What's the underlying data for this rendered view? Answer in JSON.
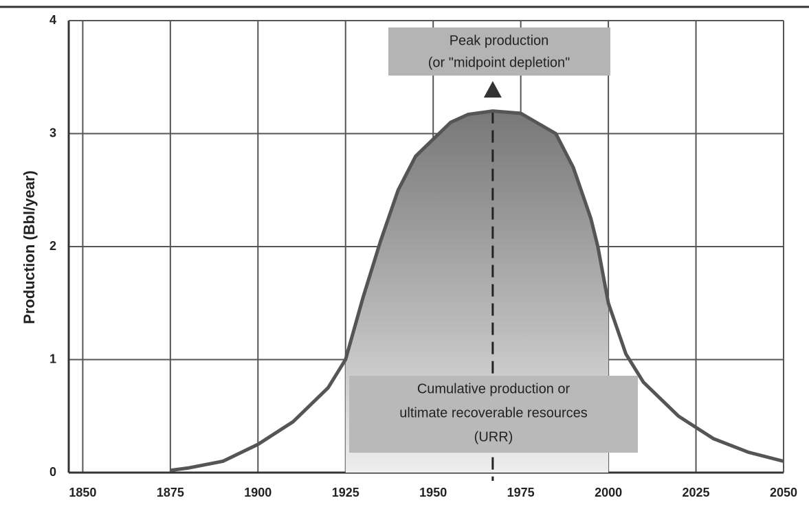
{
  "chart_data": {
    "type": "line",
    "y_label": "Production (Bbl/year)",
    "annotations": [
      "Peak production",
      "(or \"midpoint depletion\"",
      "Cumulative production or",
      "ultimate recoverable resources",
      "(URR)"
    ],
    "x": [
      1875,
      1880,
      1890,
      1900,
      1910,
      1920,
      1925,
      1930,
      1935,
      1940,
      1945,
      1950,
      1955,
      1960,
      1967,
      1975,
      1985,
      1990,
      1995,
      1997,
      2000,
      2005,
      2010,
      2020,
      2025,
      2030,
      2040,
      2050
    ],
    "series": [
      {
        "name": "Production",
        "color": "#555555",
        "values": [
          0.02,
          0.04,
          0.1,
          0.25,
          0.45,
          0.75,
          1.0,
          1.55,
          2.05,
          2.5,
          2.8,
          2.95,
          3.1,
          3.17,
          3.2,
          3.18,
          3.0,
          2.7,
          2.25,
          2.0,
          1.5,
          1.05,
          0.8,
          0.5,
          0.4,
          0.3,
          0.18,
          0.1
        ]
      }
    ],
    "xlim": [
      1846,
      2050
    ],
    "ylim": [
      0,
      4
    ],
    "xticks": [
      1850,
      1875,
      1900,
      1925,
      1950,
      1975,
      2000,
      2025,
      2050
    ],
    "yticks": [
      0,
      1,
      2,
      3,
      4
    ],
    "grid": true
  }
}
